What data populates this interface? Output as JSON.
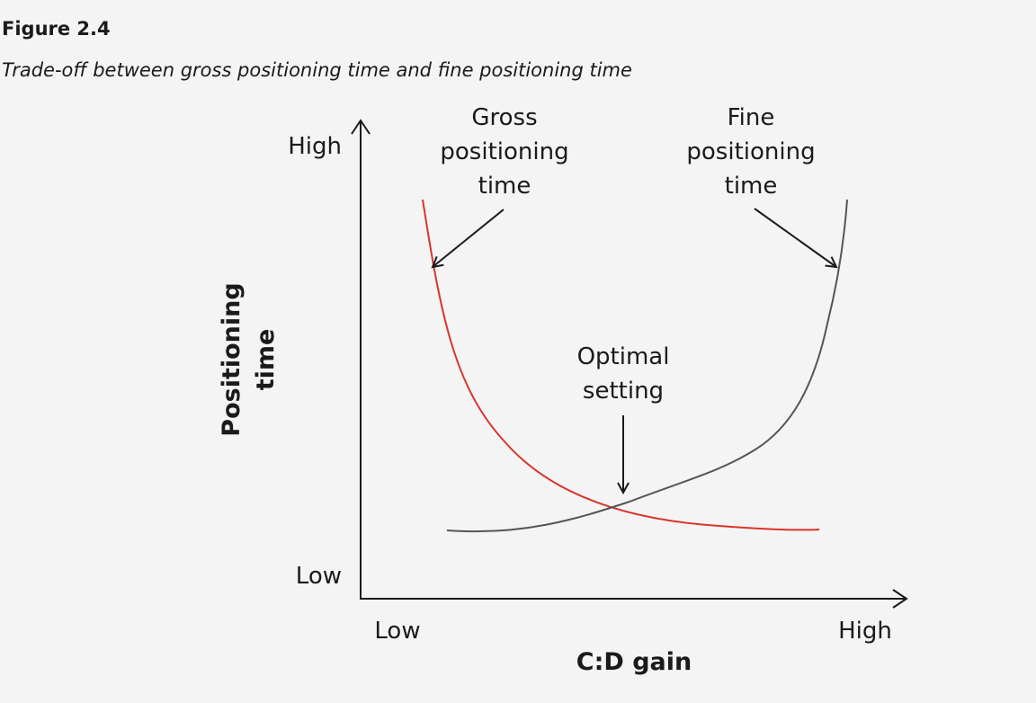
{
  "figure": {
    "number": "Figure 2.4",
    "caption": "Trade-off between gross positioning time and fine positioning time"
  },
  "y_axis": {
    "title_lines": [
      "Positioning",
      "time"
    ],
    "high_label": "High",
    "low_label": "Low"
  },
  "x_axis": {
    "title": "C:D gain",
    "low_label": "Low",
    "high_label": "High"
  },
  "curves": {
    "gross": {
      "label_lines": [
        "Gross",
        "positioning",
        "time"
      ],
      "color": "#d9342b"
    },
    "fine": {
      "label_lines": [
        "Fine",
        "positioning",
        "time"
      ],
      "color": "#555555"
    }
  },
  "annotation": {
    "label_lines": [
      "Optimal",
      "setting"
    ]
  },
  "colors": {
    "background": "#f4f4f4",
    "axis": "#1a1a1a",
    "text": "#1a1a1a"
  }
}
